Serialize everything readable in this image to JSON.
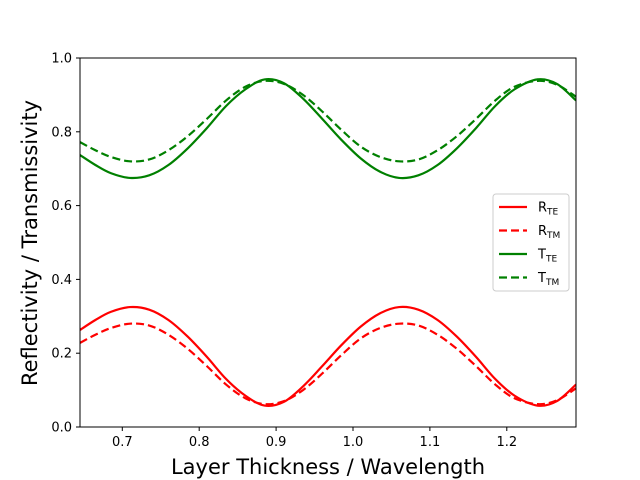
{
  "chart_data": {
    "type": "line",
    "title": "",
    "xlabel": "Layer Thickness / Wavelength",
    "ylabel": "Reflectivity / Transmissivity",
    "xlim": [
      0.645,
      1.29
    ],
    "ylim": [
      0.0,
      1.0
    ],
    "xticks": [
      0.7,
      0.8,
      0.9,
      1.0,
      1.1,
      1.2
    ],
    "xtick_labels": [
      "0.7",
      "0.8",
      "0.9",
      "1.0",
      "1.1",
      "1.2"
    ],
    "yticks": [
      0.0,
      0.2,
      0.4,
      0.6,
      0.8,
      1.0
    ],
    "ytick_labels": [
      "0.0",
      "0.2",
      "0.4",
      "0.6",
      "0.8",
      "1.0"
    ],
    "grid": false,
    "legend_position": "right",
    "x": [
      0.645,
      0.665,
      0.685,
      0.71,
      0.735,
      0.76,
      0.785,
      0.81,
      0.835,
      0.86,
      0.885,
      0.91,
      0.935,
      0.96,
      0.985,
      1.01,
      1.035,
      1.06,
      1.085,
      1.11,
      1.135,
      1.16,
      1.185,
      1.21,
      1.24,
      1.265,
      1.29
    ],
    "series": [
      {
        "name": "R",
        "subscript": "TE",
        "color": "#ff0000",
        "dash": "solid",
        "values": [
          0.263,
          0.29,
          0.312,
          0.325,
          0.318,
          0.29,
          0.245,
          0.19,
          0.13,
          0.085,
          0.058,
          0.068,
          0.11,
          0.165,
          0.222,
          0.272,
          0.308,
          0.325,
          0.318,
          0.29,
          0.245,
          0.19,
          0.13,
          0.085,
          0.058,
          0.07,
          0.115
        ]
      },
      {
        "name": "R",
        "subscript": "TM",
        "color": "#ff0000",
        "dash": "dashed",
        "values": [
          0.228,
          0.25,
          0.268,
          0.28,
          0.275,
          0.25,
          0.212,
          0.165,
          0.115,
          0.078,
          0.062,
          0.07,
          0.1,
          0.145,
          0.195,
          0.24,
          0.268,
          0.28,
          0.275,
          0.25,
          0.212,
          0.165,
          0.115,
          0.078,
          0.062,
          0.072,
          0.105
        ]
      },
      {
        "name": "T",
        "subscript": "TE",
        "color": "#008000",
        "dash": "solid",
        "values": [
          0.737,
          0.71,
          0.688,
          0.675,
          0.682,
          0.71,
          0.755,
          0.81,
          0.87,
          0.915,
          0.942,
          0.932,
          0.89,
          0.835,
          0.778,
          0.728,
          0.692,
          0.675,
          0.682,
          0.71,
          0.755,
          0.81,
          0.87,
          0.915,
          0.942,
          0.93,
          0.885
        ]
      },
      {
        "name": "T",
        "subscript": "TM",
        "color": "#008000",
        "dash": "dashed",
        "values": [
          0.772,
          0.75,
          0.732,
          0.72,
          0.725,
          0.75,
          0.788,
          0.835,
          0.885,
          0.922,
          0.938,
          0.93,
          0.9,
          0.855,
          0.805,
          0.76,
          0.732,
          0.72,
          0.725,
          0.75,
          0.788,
          0.835,
          0.885,
          0.922,
          0.938,
          0.928,
          0.895
        ]
      }
    ]
  }
}
